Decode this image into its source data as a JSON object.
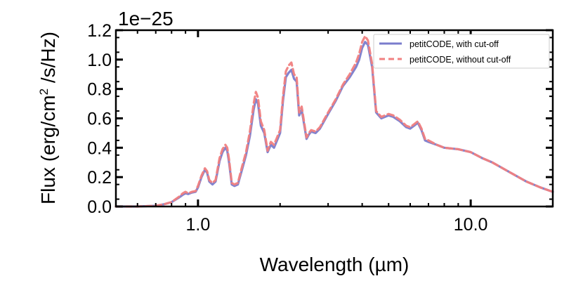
{
  "chart_data": {
    "type": "line",
    "title": "",
    "xlabel": "Wavelength (µm)",
    "ylabel_prefix": "Flux (erg/cm",
    "ylabel_superscript": "2",
    "ylabel_suffix": " /s/Hz)",
    "y_offset_text": "1e−25",
    "xscale": "log",
    "xlim": [
      0.5,
      20.0
    ],
    "ylim": [
      0.0,
      1.2
    ],
    "x_ticks": [
      {
        "value": 1.0,
        "label": "1.0"
      },
      {
        "value": 10.0,
        "label": "10.0"
      }
    ],
    "y_ticks": [
      {
        "value": 0.0,
        "label": "0.0"
      },
      {
        "value": 0.2,
        "label": "0.2"
      },
      {
        "value": 0.4,
        "label": "0.4"
      },
      {
        "value": 0.6,
        "label": "0.6"
      },
      {
        "value": 0.8,
        "label": "0.8"
      },
      {
        "value": 1.0,
        "label": "1.0"
      },
      {
        "value": 1.2,
        "label": "1.2"
      }
    ],
    "legend_position": "top-right",
    "series": [
      {
        "name": "petitCODE, with cut-off",
        "color": "#7a7ccc",
        "style": "solid",
        "x": [
          0.5,
          0.6,
          0.7,
          0.75,
          0.8,
          0.85,
          0.88,
          0.9,
          0.92,
          0.95,
          0.98,
          1.0,
          1.03,
          1.06,
          1.08,
          1.1,
          1.13,
          1.16,
          1.2,
          1.23,
          1.26,
          1.28,
          1.3,
          1.33,
          1.36,
          1.4,
          1.45,
          1.5,
          1.55,
          1.6,
          1.63,
          1.66,
          1.7,
          1.75,
          1.8,
          1.85,
          1.9,
          2.0,
          2.05,
          2.1,
          2.15,
          2.2,
          2.25,
          2.3,
          2.35,
          2.4,
          2.5,
          2.55,
          2.6,
          2.7,
          2.8,
          3.0,
          3.2,
          3.4,
          3.6,
          3.8,
          3.9,
          4.0,
          4.1,
          4.2,
          4.35,
          4.5,
          4.7,
          5.0,
          5.2,
          5.5,
          5.8,
          6.0,
          6.2,
          6.4,
          6.6,
          6.8,
          7.0,
          7.5,
          8.0,
          9.0,
          10.0,
          11.0,
          12.0,
          14.0,
          16.0,
          18.0,
          20.0
        ],
        "values": [
          0.0,
          0.0,
          0.005,
          0.015,
          0.03,
          0.06,
          0.08,
          0.09,
          0.085,
          0.095,
          0.1,
          0.13,
          0.2,
          0.25,
          0.23,
          0.17,
          0.15,
          0.17,
          0.31,
          0.37,
          0.4,
          0.38,
          0.3,
          0.15,
          0.14,
          0.15,
          0.25,
          0.35,
          0.48,
          0.66,
          0.73,
          0.7,
          0.55,
          0.5,
          0.37,
          0.42,
          0.4,
          0.5,
          0.72,
          0.88,
          0.91,
          0.93,
          0.87,
          0.85,
          0.62,
          0.66,
          0.46,
          0.49,
          0.51,
          0.5,
          0.53,
          0.63,
          0.72,
          0.82,
          0.88,
          0.95,
          1.0,
          1.08,
          1.12,
          1.1,
          0.95,
          0.64,
          0.6,
          0.62,
          0.61,
          0.58,
          0.54,
          0.53,
          0.55,
          0.57,
          0.52,
          0.45,
          0.44,
          0.42,
          0.4,
          0.39,
          0.37,
          0.33,
          0.3,
          0.23,
          0.17,
          0.13,
          0.1
        ]
      },
      {
        "name": "petitCODE, without cut-off",
        "color": "#f08080",
        "style": "dashed",
        "x": [
          0.5,
          0.6,
          0.7,
          0.75,
          0.8,
          0.85,
          0.88,
          0.9,
          0.92,
          0.95,
          0.98,
          1.0,
          1.03,
          1.06,
          1.08,
          1.1,
          1.13,
          1.16,
          1.2,
          1.23,
          1.26,
          1.28,
          1.3,
          1.33,
          1.36,
          1.4,
          1.45,
          1.5,
          1.55,
          1.6,
          1.63,
          1.66,
          1.7,
          1.75,
          1.8,
          1.85,
          1.9,
          2.0,
          2.05,
          2.1,
          2.15,
          2.2,
          2.25,
          2.3,
          2.35,
          2.4,
          2.5,
          2.55,
          2.6,
          2.7,
          2.8,
          3.0,
          3.2,
          3.4,
          3.6,
          3.8,
          3.9,
          4.0,
          4.1,
          4.2,
          4.35,
          4.5,
          4.7,
          5.0,
          5.2,
          5.5,
          5.8,
          6.0,
          6.2,
          6.4,
          6.6,
          6.8,
          7.0,
          7.5,
          8.0,
          9.0,
          10.0,
          11.0,
          12.0,
          14.0,
          16.0,
          18.0,
          20.0
        ],
        "values": [
          0.0,
          0.0,
          0.005,
          0.015,
          0.03,
          0.065,
          0.09,
          0.1,
          0.09,
          0.1,
          0.105,
          0.14,
          0.21,
          0.26,
          0.24,
          0.18,
          0.16,
          0.18,
          0.33,
          0.39,
          0.42,
          0.4,
          0.32,
          0.16,
          0.15,
          0.16,
          0.27,
          0.37,
          0.51,
          0.7,
          0.78,
          0.74,
          0.58,
          0.52,
          0.38,
          0.44,
          0.42,
          0.52,
          0.75,
          0.92,
          0.96,
          0.98,
          0.9,
          0.88,
          0.64,
          0.68,
          0.47,
          0.5,
          0.52,
          0.51,
          0.54,
          0.64,
          0.73,
          0.83,
          0.9,
          0.98,
          1.04,
          1.12,
          1.16,
          1.13,
          0.97,
          0.65,
          0.61,
          0.63,
          0.62,
          0.59,
          0.55,
          0.54,
          0.56,
          0.58,
          0.53,
          0.46,
          0.45,
          0.42,
          0.4,
          0.39,
          0.37,
          0.33,
          0.3,
          0.23,
          0.17,
          0.13,
          0.1
        ]
      }
    ]
  }
}
